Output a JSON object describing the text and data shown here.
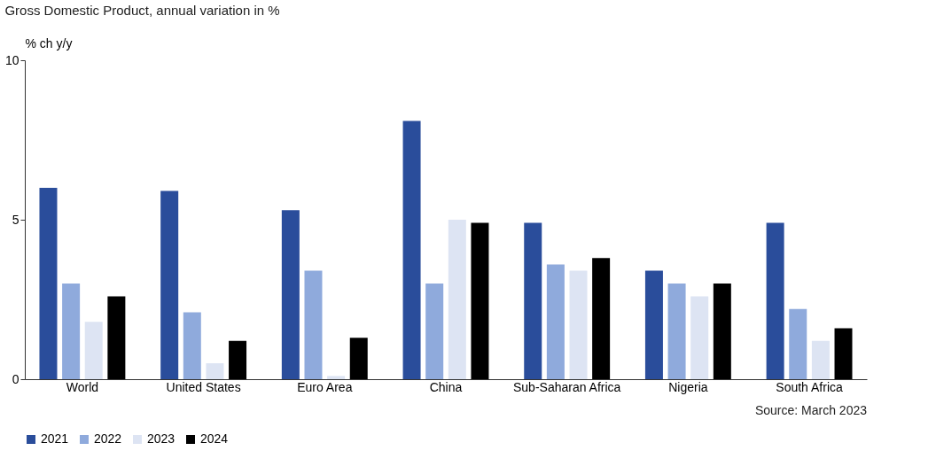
{
  "chart_data": {
    "type": "bar",
    "title": "Gross Domestic Product, annual variation in %",
    "ylabel": "% ch y/y",
    "categories": [
      "World",
      "United States",
      "Euro Area",
      "China",
      "Sub-Saharan Africa",
      "Nigeria",
      "South Africa"
    ],
    "series": [
      {
        "name": "2021",
        "color": "#2a4d9b",
        "values": [
          6.0,
          5.9,
          5.3,
          8.1,
          4.9,
          3.4,
          4.9
        ]
      },
      {
        "name": "2022",
        "color": "#8faadc",
        "values": [
          3.0,
          2.1,
          3.4,
          3.0,
          3.6,
          3.0,
          2.2
        ]
      },
      {
        "name": "2023",
        "color": "#dde4f3",
        "values": [
          1.8,
          0.5,
          0.1,
          5.0,
          3.4,
          2.6,
          1.2
        ]
      },
      {
        "name": "2024",
        "color": "#000000",
        "values": [
          2.6,
          1.2,
          1.3,
          4.9,
          3.8,
          3.0,
          1.6
        ]
      }
    ],
    "ylim": [
      0,
      10
    ],
    "yticks": [
      0,
      5,
      10
    ],
    "grid": false,
    "legend": "bottom",
    "annotations": [
      "Source: March 2023"
    ]
  }
}
